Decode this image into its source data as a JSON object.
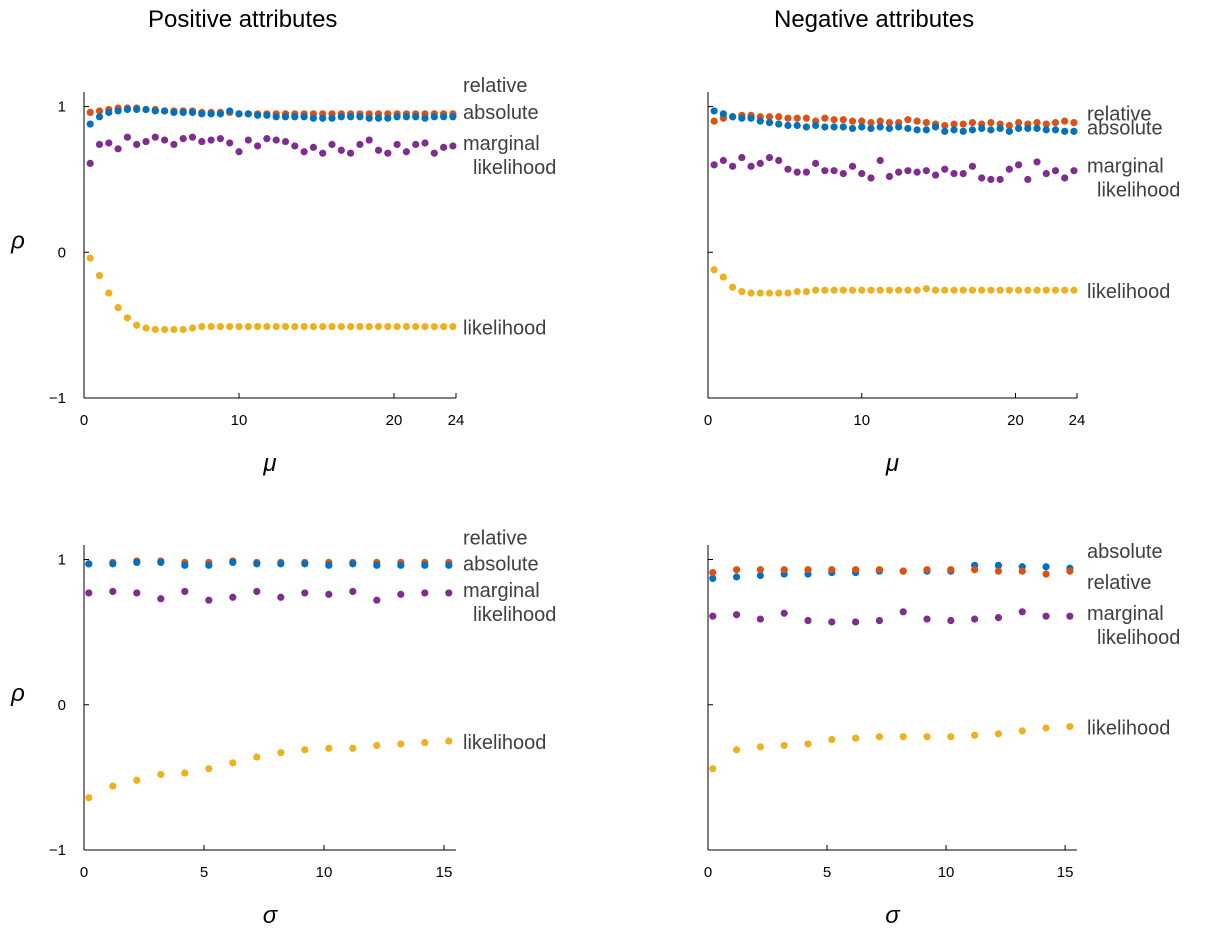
{
  "column_titles": [
    "Positive attributes",
    "Negative attributes"
  ],
  "colors": {
    "relative": "#d95319",
    "absolute": "#0072bd",
    "marginal_likelihood": "#7e2f8e",
    "likelihood": "#edb120",
    "axis": "#000000",
    "label": "#404040"
  },
  "chart_data": [
    {
      "type": "scatter",
      "panel_title": "Positive attributes",
      "xlabel": "μ",
      "ylabel": "ρ",
      "xlim": [
        0,
        24
      ],
      "ylim": [
        -1,
        1.1
      ],
      "xticks": [
        0,
        10,
        20,
        24
      ],
      "yticks": [
        -1,
        0,
        1
      ],
      "x": [
        0.4,
        1.0,
        1.6,
        2.2,
        2.8,
        3.4,
        4.0,
        4.6,
        5.2,
        5.8,
        6.4,
        7.0,
        7.6,
        8.2,
        8.8,
        9.4,
        10.0,
        10.6,
        11.2,
        11.8,
        12.4,
        13.0,
        13.6,
        14.2,
        14.8,
        15.4,
        16.0,
        16.6,
        17.2,
        17.8,
        18.4,
        19.0,
        19.6,
        20.2,
        20.8,
        21.4,
        22.0,
        22.6,
        23.2,
        23.8
      ],
      "series": [
        {
          "name": "relative",
          "label_lines": [
            "relative"
          ],
          "color_key": "relative",
          "values": [
            0.96,
            0.97,
            0.98,
            0.99,
            0.99,
            0.99,
            0.98,
            0.98,
            0.97,
            0.97,
            0.97,
            0.97,
            0.96,
            0.96,
            0.96,
            0.96,
            0.95,
            0.95,
            0.95,
            0.95,
            0.95,
            0.95,
            0.95,
            0.95,
            0.95,
            0.95,
            0.95,
            0.95,
            0.95,
            0.95,
            0.95,
            0.95,
            0.95,
            0.95,
            0.95,
            0.95,
            0.95,
            0.95,
            0.95,
            0.95
          ]
        },
        {
          "name": "absolute",
          "label_lines": [
            "absolute"
          ],
          "color_key": "absolute",
          "values": [
            0.88,
            0.93,
            0.96,
            0.97,
            0.98,
            0.98,
            0.98,
            0.97,
            0.97,
            0.96,
            0.96,
            0.96,
            0.95,
            0.95,
            0.95,
            0.97,
            0.95,
            0.95,
            0.94,
            0.94,
            0.93,
            0.93,
            0.93,
            0.93,
            0.92,
            0.92,
            0.92,
            0.93,
            0.93,
            0.93,
            0.92,
            0.92,
            0.92,
            0.93,
            0.93,
            0.93,
            0.92,
            0.93,
            0.93,
            0.93
          ]
        },
        {
          "name": "marginal likelihood",
          "label_lines": [
            "marginal",
            "likelihood"
          ],
          "color_key": "marginal_likelihood",
          "values": [
            0.61,
            0.74,
            0.75,
            0.71,
            0.79,
            0.74,
            0.76,
            0.79,
            0.77,
            0.74,
            0.78,
            0.79,
            0.76,
            0.77,
            0.78,
            0.75,
            0.69,
            0.77,
            0.73,
            0.78,
            0.77,
            0.76,
            0.73,
            0.69,
            0.72,
            0.68,
            0.74,
            0.7,
            0.68,
            0.74,
            0.77,
            0.7,
            0.68,
            0.74,
            0.69,
            0.74,
            0.75,
            0.68,
            0.72,
            0.73
          ]
        },
        {
          "name": "likelihood",
          "label_lines": [
            "likelihood"
          ],
          "color_key": "likelihood",
          "values": [
            -0.04,
            -0.16,
            -0.28,
            -0.38,
            -0.45,
            -0.5,
            -0.52,
            -0.53,
            -0.53,
            -0.53,
            -0.53,
            -0.52,
            -0.51,
            -0.51,
            -0.51,
            -0.51,
            -0.51,
            -0.51,
            -0.51,
            -0.51,
            -0.51,
            -0.51,
            -0.51,
            -0.51,
            -0.51,
            -0.51,
            -0.51,
            -0.51,
            -0.51,
            -0.51,
            -0.51,
            -0.51,
            -0.51,
            -0.51,
            -0.51,
            -0.51,
            -0.51,
            -0.51,
            -0.51,
            -0.51
          ]
        }
      ]
    },
    {
      "type": "scatter",
      "panel_title": "Negative attributes",
      "xlabel": "μ",
      "ylabel": "",
      "xlim": [
        0,
        24
      ],
      "ylim": [
        -1,
        1.1
      ],
      "xticks": [
        0,
        10,
        20,
        24
      ],
      "yticks": [
        -1,
        0,
        1
      ],
      "x": [
        0.4,
        1.0,
        1.6,
        2.2,
        2.8,
        3.4,
        4.0,
        4.6,
        5.2,
        5.8,
        6.4,
        7.0,
        7.6,
        8.2,
        8.8,
        9.4,
        10.0,
        10.6,
        11.2,
        11.8,
        12.4,
        13.0,
        13.6,
        14.2,
        14.8,
        15.4,
        16.0,
        16.6,
        17.2,
        17.8,
        18.4,
        19.0,
        19.6,
        20.2,
        20.8,
        21.4,
        22.0,
        22.6,
        23.2,
        23.8
      ],
      "series": [
        {
          "name": "relative",
          "label_lines": [
            "relative"
          ],
          "color_key": "relative",
          "values": [
            0.9,
            0.92,
            0.93,
            0.94,
            0.94,
            0.93,
            0.93,
            0.93,
            0.92,
            0.92,
            0.92,
            0.9,
            0.92,
            0.91,
            0.91,
            0.9,
            0.9,
            0.89,
            0.9,
            0.89,
            0.89,
            0.91,
            0.9,
            0.89,
            0.88,
            0.87,
            0.88,
            0.88,
            0.89,
            0.88,
            0.89,
            0.88,
            0.87,
            0.89,
            0.88,
            0.89,
            0.88,
            0.89,
            0.9,
            0.89
          ]
        },
        {
          "name": "absolute",
          "label_lines": [
            "absolute"
          ],
          "color_key": "absolute",
          "values": [
            0.97,
            0.95,
            0.93,
            0.92,
            0.92,
            0.9,
            0.89,
            0.88,
            0.87,
            0.87,
            0.86,
            0.87,
            0.86,
            0.86,
            0.86,
            0.85,
            0.86,
            0.85,
            0.86,
            0.85,
            0.86,
            0.85,
            0.84,
            0.84,
            0.86,
            0.83,
            0.84,
            0.83,
            0.84,
            0.85,
            0.84,
            0.85,
            0.83,
            0.85,
            0.85,
            0.85,
            0.84,
            0.84,
            0.83,
            0.83
          ]
        },
        {
          "name": "marginal likelihood",
          "label_lines": [
            "marginal",
            "likelihood"
          ],
          "color_key": "marginal_likelihood",
          "values": [
            0.6,
            0.63,
            0.59,
            0.65,
            0.59,
            0.61,
            0.65,
            0.63,
            0.57,
            0.55,
            0.55,
            0.61,
            0.56,
            0.56,
            0.54,
            0.59,
            0.54,
            0.51,
            0.63,
            0.52,
            0.55,
            0.56,
            0.55,
            0.56,
            0.53,
            0.57,
            0.54,
            0.54,
            0.59,
            0.51,
            0.5,
            0.5,
            0.57,
            0.6,
            0.5,
            0.62,
            0.54,
            0.56,
            0.51,
            0.56
          ]
        },
        {
          "name": "likelihood",
          "label_lines": [
            "likelihood"
          ],
          "color_key": "likelihood",
          "values": [
            -0.12,
            -0.17,
            -0.24,
            -0.27,
            -0.28,
            -0.28,
            -0.28,
            -0.28,
            -0.28,
            -0.27,
            -0.27,
            -0.26,
            -0.26,
            -0.26,
            -0.26,
            -0.26,
            -0.26,
            -0.26,
            -0.26,
            -0.26,
            -0.26,
            -0.26,
            -0.26,
            -0.25,
            -0.26,
            -0.26,
            -0.26,
            -0.26,
            -0.26,
            -0.26,
            -0.26,
            -0.26,
            -0.26,
            -0.26,
            -0.26,
            -0.26,
            -0.26,
            -0.26,
            -0.26,
            -0.26
          ]
        }
      ]
    },
    {
      "type": "scatter",
      "panel_title": "",
      "xlabel": "σ",
      "ylabel": "ρ",
      "xlim": [
        0,
        15.5
      ],
      "ylim": [
        -1,
        1.1
      ],
      "xticks": [
        0,
        5,
        10,
        15
      ],
      "yticks": [
        -1,
        0,
        1
      ],
      "x": [
        0.2,
        1.2,
        2.2,
        3.2,
        4.2,
        5.2,
        6.2,
        7.2,
        8.2,
        9.2,
        10.2,
        11.2,
        12.2,
        13.2,
        14.2,
        15.2
      ],
      "series": [
        {
          "name": "relative",
          "label_lines": [
            "relative"
          ],
          "color_key": "relative",
          "values": [
            0.97,
            0.98,
            0.99,
            0.99,
            0.98,
            0.98,
            0.99,
            0.98,
            0.98,
            0.98,
            0.98,
            0.98,
            0.98,
            0.98,
            0.98,
            0.98
          ]
        },
        {
          "name": "absolute",
          "label_lines": [
            "absolute"
          ],
          "color_key": "absolute",
          "values": [
            0.97,
            0.97,
            0.98,
            0.98,
            0.96,
            0.96,
            0.98,
            0.97,
            0.97,
            0.97,
            0.96,
            0.97,
            0.96,
            0.96,
            0.96,
            0.96
          ]
        },
        {
          "name": "marginal likelihood",
          "label_lines": [
            "marginal",
            "likelihood"
          ],
          "color_key": "marginal_likelihood",
          "values": [
            0.77,
            0.78,
            0.77,
            0.73,
            0.78,
            0.72,
            0.74,
            0.78,
            0.74,
            0.77,
            0.76,
            0.78,
            0.72,
            0.76,
            0.77,
            0.77
          ]
        },
        {
          "name": "likelihood",
          "label_lines": [
            "likelihood"
          ],
          "color_key": "likelihood",
          "values": [
            -0.64,
            -0.56,
            -0.52,
            -0.48,
            -0.47,
            -0.44,
            -0.4,
            -0.36,
            -0.33,
            -0.31,
            -0.3,
            -0.3,
            -0.28,
            -0.27,
            -0.26,
            -0.25
          ]
        }
      ]
    },
    {
      "type": "scatter",
      "panel_title": "",
      "xlabel": "σ",
      "ylabel": "",
      "xlim": [
        0,
        15.5
      ],
      "ylim": [
        -1,
        1.1
      ],
      "xticks": [
        0,
        5,
        10,
        15
      ],
      "yticks": [
        -1,
        0,
        1
      ],
      "x": [
        0.2,
        1.2,
        2.2,
        3.2,
        4.2,
        5.2,
        6.2,
        7.2,
        8.2,
        9.2,
        10.2,
        11.2,
        12.2,
        13.2,
        14.2,
        15.2
      ],
      "series": [
        {
          "name": "absolute",
          "label_lines": [
            "absolute"
          ],
          "color_key": "absolute",
          "values": [
            0.87,
            0.88,
            0.89,
            0.9,
            0.9,
            0.91,
            0.91,
            0.92,
            0.92,
            0.92,
            0.92,
            0.96,
            0.96,
            0.95,
            0.95,
            0.94
          ]
        },
        {
          "name": "relative",
          "label_lines": [
            "relative"
          ],
          "color_key": "relative",
          "values": [
            0.91,
            0.93,
            0.93,
            0.93,
            0.93,
            0.93,
            0.93,
            0.93,
            0.92,
            0.93,
            0.93,
            0.93,
            0.92,
            0.92,
            0.9,
            0.92
          ]
        },
        {
          "name": "marginal likelihood",
          "label_lines": [
            "marginal",
            "likelihood"
          ],
          "color_key": "marginal_likelihood",
          "values": [
            0.61,
            0.62,
            0.59,
            0.63,
            0.58,
            0.57,
            0.57,
            0.58,
            0.64,
            0.59,
            0.58,
            0.59,
            0.6,
            0.64,
            0.61,
            0.61
          ]
        },
        {
          "name": "likelihood",
          "label_lines": [
            "likelihood"
          ],
          "color_key": "likelihood",
          "values": [
            -0.44,
            -0.31,
            -0.29,
            -0.28,
            -0.27,
            -0.24,
            -0.23,
            -0.22,
            -0.22,
            -0.22,
            -0.22,
            -0.21,
            -0.2,
            -0.18,
            -0.16,
            -0.15
          ]
        }
      ]
    }
  ]
}
